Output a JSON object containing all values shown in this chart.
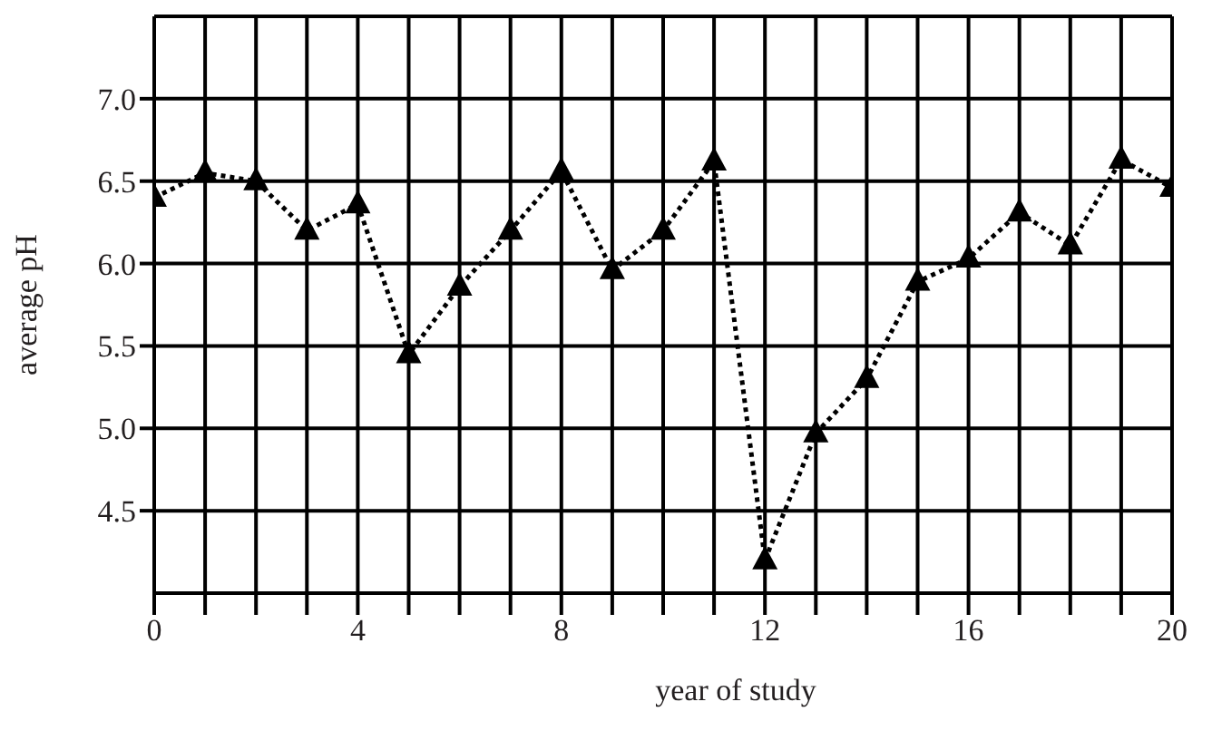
{
  "chart_data": {
    "type": "line",
    "xlabel": "year of study",
    "ylabel": "average pH",
    "x": [
      0,
      1,
      2,
      3,
      4,
      5,
      6,
      7,
      8,
      9,
      10,
      11,
      12,
      13,
      14,
      15,
      16,
      17,
      18,
      19,
      20
    ],
    "series": [
      {
        "color": "#000000",
        "values": [
          6.4,
          6.55,
          6.5,
          6.2,
          6.36,
          5.45,
          5.86,
          6.2,
          6.56,
          5.96,
          6.2,
          6.62,
          4.2,
          4.97,
          5.3,
          5.89,
          6.03,
          6.31,
          6.11,
          6.63,
          6.46
        ]
      }
    ],
    "xlim": [
      0,
      20
    ],
    "xticks": [
      0,
      {
        "value": 1,
        "label": null
      },
      {
        "value": 2,
        "label": null
      },
      {
        "value": 3,
        "label": null
      },
      4,
      {
        "value": 5,
        "label": null
      },
      {
        "value": 6,
        "label": null
      },
      {
        "value": 7,
        "label": null
      },
      8,
      {
        "value": 9,
        "label": null
      },
      {
        "value": 10,
        "label": null
      },
      {
        "value": 11,
        "label": null
      },
      12,
      {
        "value": 13,
        "label": null
      },
      {
        "value": 14,
        "label": null
      },
      {
        "value": 15,
        "label": null
      },
      16,
      {
        "value": 17,
        "label": null
      },
      {
        "value": 18,
        "label": null
      },
      {
        "value": 19,
        "label": null
      },
      20
    ],
    "ylim": [
      4.0,
      7.5
    ],
    "yticks": [
      {
        "value": 4.5,
        "label": "4.5"
      },
      {
        "value": 5,
        "label": "5.0"
      },
      {
        "value": 5.5,
        "label": "5.5"
      },
      {
        "value": 6,
        "label": "6.0"
      },
      {
        "value": 6.5,
        "label": "6.5"
      },
      {
        "value": 7,
        "label": "7.0"
      }
    ],
    "grid": true,
    "marker": "triangle",
    "line_style": "dotted"
  }
}
